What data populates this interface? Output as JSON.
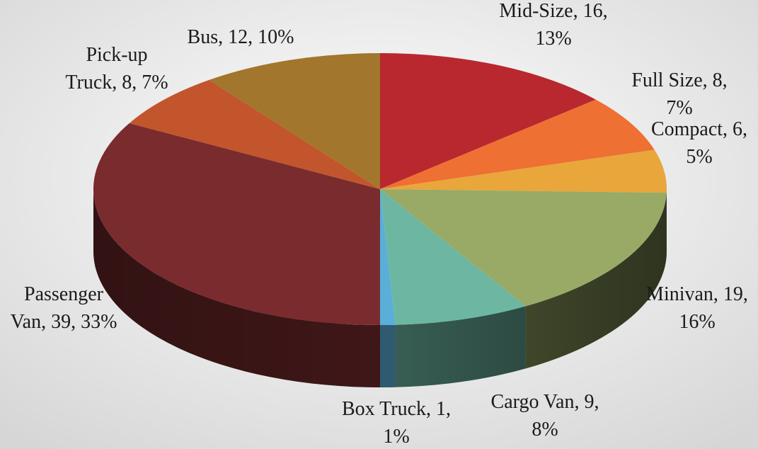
{
  "chart_data": {
    "type": "pie3d",
    "values": [
      16,
      8,
      6,
      19,
      9,
      1,
      39,
      8,
      12
    ],
    "value_labels": [
      "Mid-Size, 16,\n13%",
      "Full Size, 8,\n7%",
      "Compact, 6,\n5%",
      "Minivan, 19,\n16%",
      "Cargo Van, 9,\n8%",
      "Box Truck, 1,\n1%",
      "Passenger\nVan, 39, 33%",
      "Pick-up\nTruck, 8, 7%",
      "Bus, 12, 10%"
    ],
    "colors": [
      "#b8282e",
      "#ee7033",
      "#e9a63a",
      "#98aa66",
      "#6db6a2",
      "#5aaed8",
      "#7a2b2d",
      "#c2552c",
      "#a2762c"
    ]
  }
}
